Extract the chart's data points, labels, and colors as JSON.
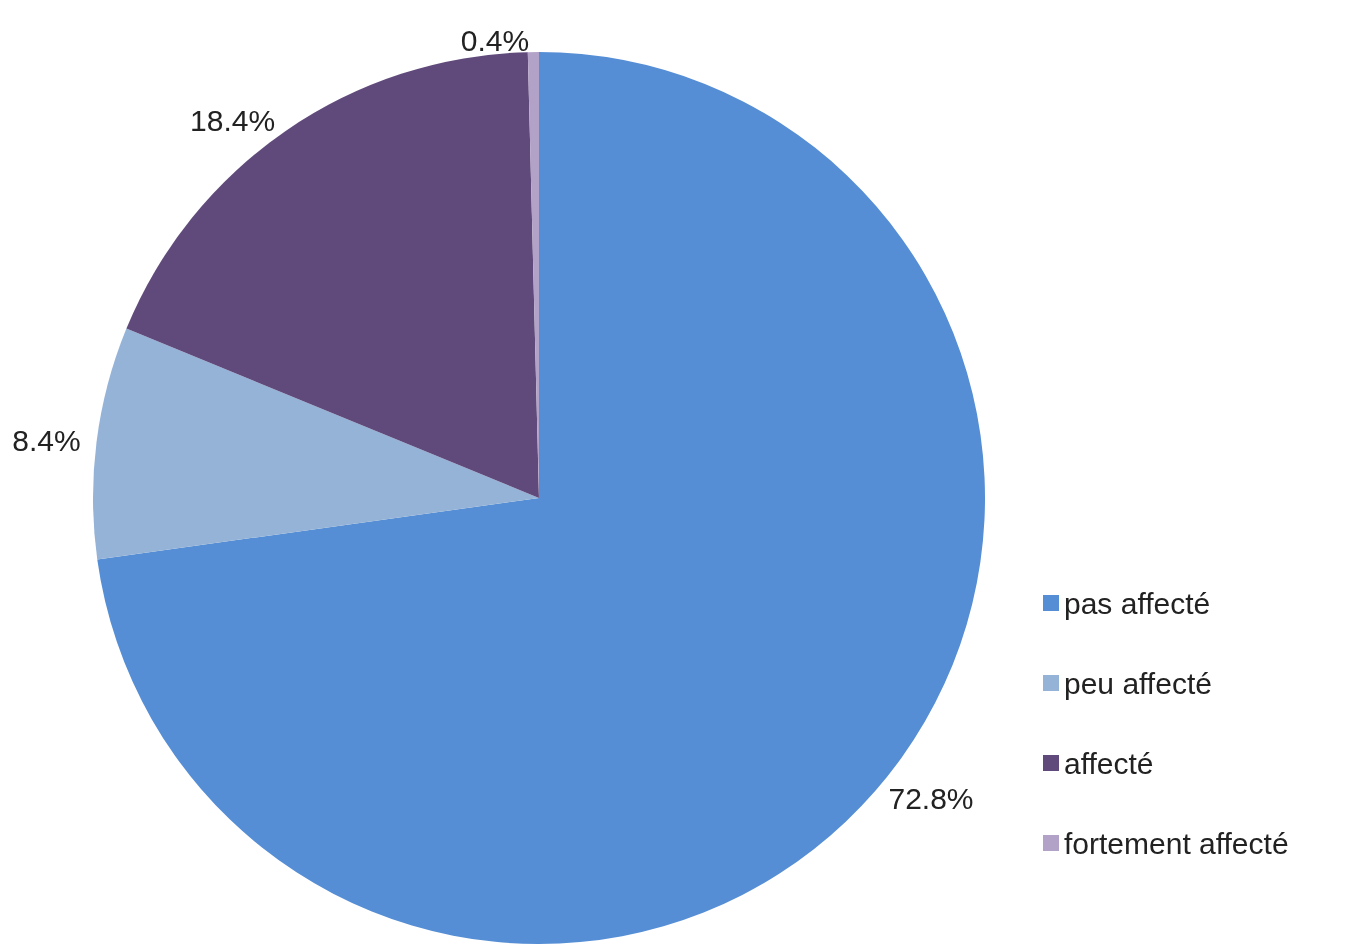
{
  "chart_data": {
    "type": "pie",
    "categories": [
      "pas affecté",
      "peu affecté",
      "affecté",
      "fortement affecté"
    ],
    "values": [
      72.8,
      8.4,
      18.4,
      0.4
    ],
    "colors": [
      "#558ed5",
      "#95b3d7",
      "#604a7b",
      "#b3a2c7"
    ],
    "value_labels": [
      "72.8%",
      "8.4%",
      "18.4%",
      "0.4%"
    ],
    "legend": "right"
  }
}
